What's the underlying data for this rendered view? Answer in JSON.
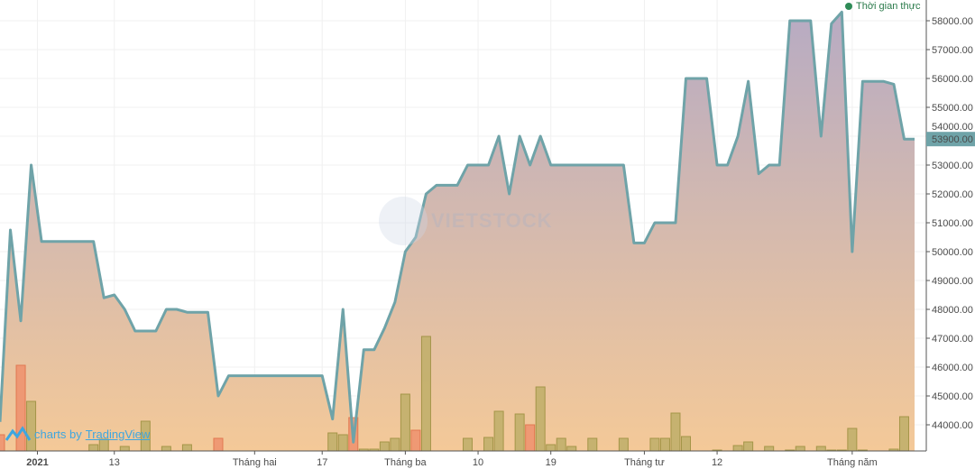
{
  "legend": {
    "label": "Thời gian thực",
    "dot_color": "#2e8b57"
  },
  "credit": {
    "prefix": "charts by",
    "brand": "TradingView"
  },
  "watermark": "VIETSTOCK",
  "colors": {
    "line": "#6fa3a8",
    "fill_top": "#b7abc3",
    "fill_bottom": "#f4c998",
    "vol_up": "#c2b06c",
    "vol_down": "#ef9470",
    "last_price_bg": "#6fa3a8"
  },
  "chart_data": {
    "type": "area",
    "title": "",
    "xlabel": "",
    "ylabel": "",
    "ylim": [
      43200,
      58800
    ],
    "y_ticks": [
      44000,
      45000,
      46000,
      47000,
      48000,
      49000,
      50000,
      51000,
      52000,
      53000,
      54000,
      55000,
      56000,
      57000,
      58000
    ],
    "y_tick_labels": [
      "44000.00",
      "45000.00",
      "46000.00",
      "47000.00",
      "48000.00",
      "49000.00",
      "50000.00",
      "51000.00",
      "52000.00",
      "53000.00",
      "54000.00",
      "55000.00",
      "56000.00",
      "57000.00",
      "58000.00"
    ],
    "last_price": 53900,
    "last_price_label": "53900.00",
    "x_tick_labels": [
      {
        "label": "2021",
        "at_point": 3.6,
        "bold": true
      },
      {
        "label": "13",
        "at_point": 11
      },
      {
        "label": "Tháng hai",
        "at_point": 24.5
      },
      {
        "label": "17",
        "at_point": 31
      },
      {
        "label": "Tháng ba",
        "at_point": 39
      },
      {
        "label": "10",
        "at_point": 46
      },
      {
        "label": "19",
        "at_point": 53
      },
      {
        "label": "Tháng tư",
        "at_point": 62
      },
      {
        "label": "12",
        "at_point": 69
      },
      {
        "label": "Tháng năm",
        "at_point": 82
      }
    ],
    "price": [
      44100,
      50750,
      47600,
      53000,
      50350,
      50350,
      50350,
      50350,
      50350,
      50350,
      48400,
      48500,
      48000,
      47250,
      47250,
      47250,
      48000,
      48000,
      47900,
      47900,
      47900,
      45000,
      45700,
      45700,
      45700,
      45700,
      45700,
      45700,
      45700,
      45700,
      45700,
      45700,
      44200,
      48000,
      43400,
      46600,
      46600,
      47350,
      48250,
      50000,
      50500,
      52000,
      52300,
      52300,
      52300,
      53000,
      53000,
      53000,
      54000,
      52000,
      54000,
      53000,
      54000,
      53000,
      53000,
      53000,
      53000,
      53000,
      53000,
      53000,
      53000,
      50300,
      50300,
      51000,
      51000,
      51000,
      56000,
      56000,
      56000,
      53000,
      53000,
      54000,
      55900,
      52700,
      53000,
      53000,
      58000,
      58000,
      58000,
      54000,
      57900,
      58300,
      50000,
      55900,
      55900,
      55900,
      55800,
      53900,
      53900
    ],
    "volume_relative": [
      18,
      0,
      95,
      55,
      0,
      0,
      0,
      0,
      0,
      7,
      13,
      0,
      5,
      0,
      33,
      0,
      5,
      0,
      7,
      0,
      0,
      14,
      0,
      0,
      0,
      0,
      0,
      0,
      0,
      0,
      0,
      0,
      20,
      18,
      37,
      2,
      2,
      10,
      14,
      63,
      23,
      127,
      0,
      0,
      0,
      14,
      0,
      15,
      44,
      0,
      41,
      29,
      71,
      7,
      14,
      5,
      0,
      14,
      0,
      0,
      14,
      0,
      0,
      14,
      14,
      42,
      16,
      0,
      0,
      1,
      0,
      6,
      10,
      0,
      5,
      0,
      1,
      5,
      0,
      5,
      1,
      1,
      25,
      1,
      0,
      0,
      2,
      38,
      0
    ],
    "volume_down": [
      0,
      2,
      21,
      34,
      40,
      51
    ]
  }
}
